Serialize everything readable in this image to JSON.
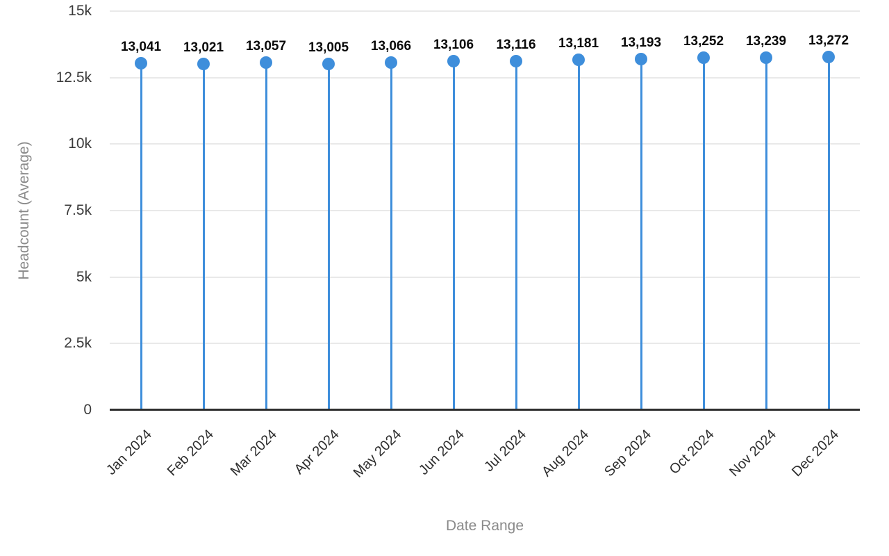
{
  "chart_data": {
    "type": "scatter",
    "variant": "lollipop",
    "categories": [
      "Jan 2024",
      "Feb 2024",
      "Mar 2024",
      "Apr 2024",
      "May 2024",
      "Jun 2024",
      "Jul 2024",
      "Aug 2024",
      "Sep 2024",
      "Oct 2024",
      "Nov 2024",
      "Dec 2024"
    ],
    "values": [
      13041,
      13021,
      13057,
      13005,
      13066,
      13106,
      13116,
      13181,
      13193,
      13252,
      13239,
      13272
    ],
    "value_labels": [
      "13,041",
      "13,021",
      "13,057",
      "13,005",
      "13,066",
      "13,106",
      "13,116",
      "13,181",
      "13,193",
      "13,252",
      "13,239",
      "13,272"
    ],
    "title": "",
    "xlabel": "Date Range",
    "ylabel": "Headcount (Average)",
    "ylim": [
      0,
      15000
    ],
    "yticks": [
      0,
      2500,
      5000,
      7500,
      10000,
      12500,
      15000
    ],
    "ytick_labels": [
      "0",
      "2.5k",
      "5k",
      "7.5k",
      "10k",
      "12.5k",
      "15k"
    ],
    "grid": true,
    "legend": false,
    "colors": {
      "marker": "#3e8edb",
      "stem": "#3e8edb",
      "gridline": "#e9e9e9",
      "axis_line": "#2d2d2d",
      "tick_text": "#3b3b3b",
      "axis_title_text": "#8a8a8a",
      "value_label_text": "#0a0a0a"
    }
  }
}
